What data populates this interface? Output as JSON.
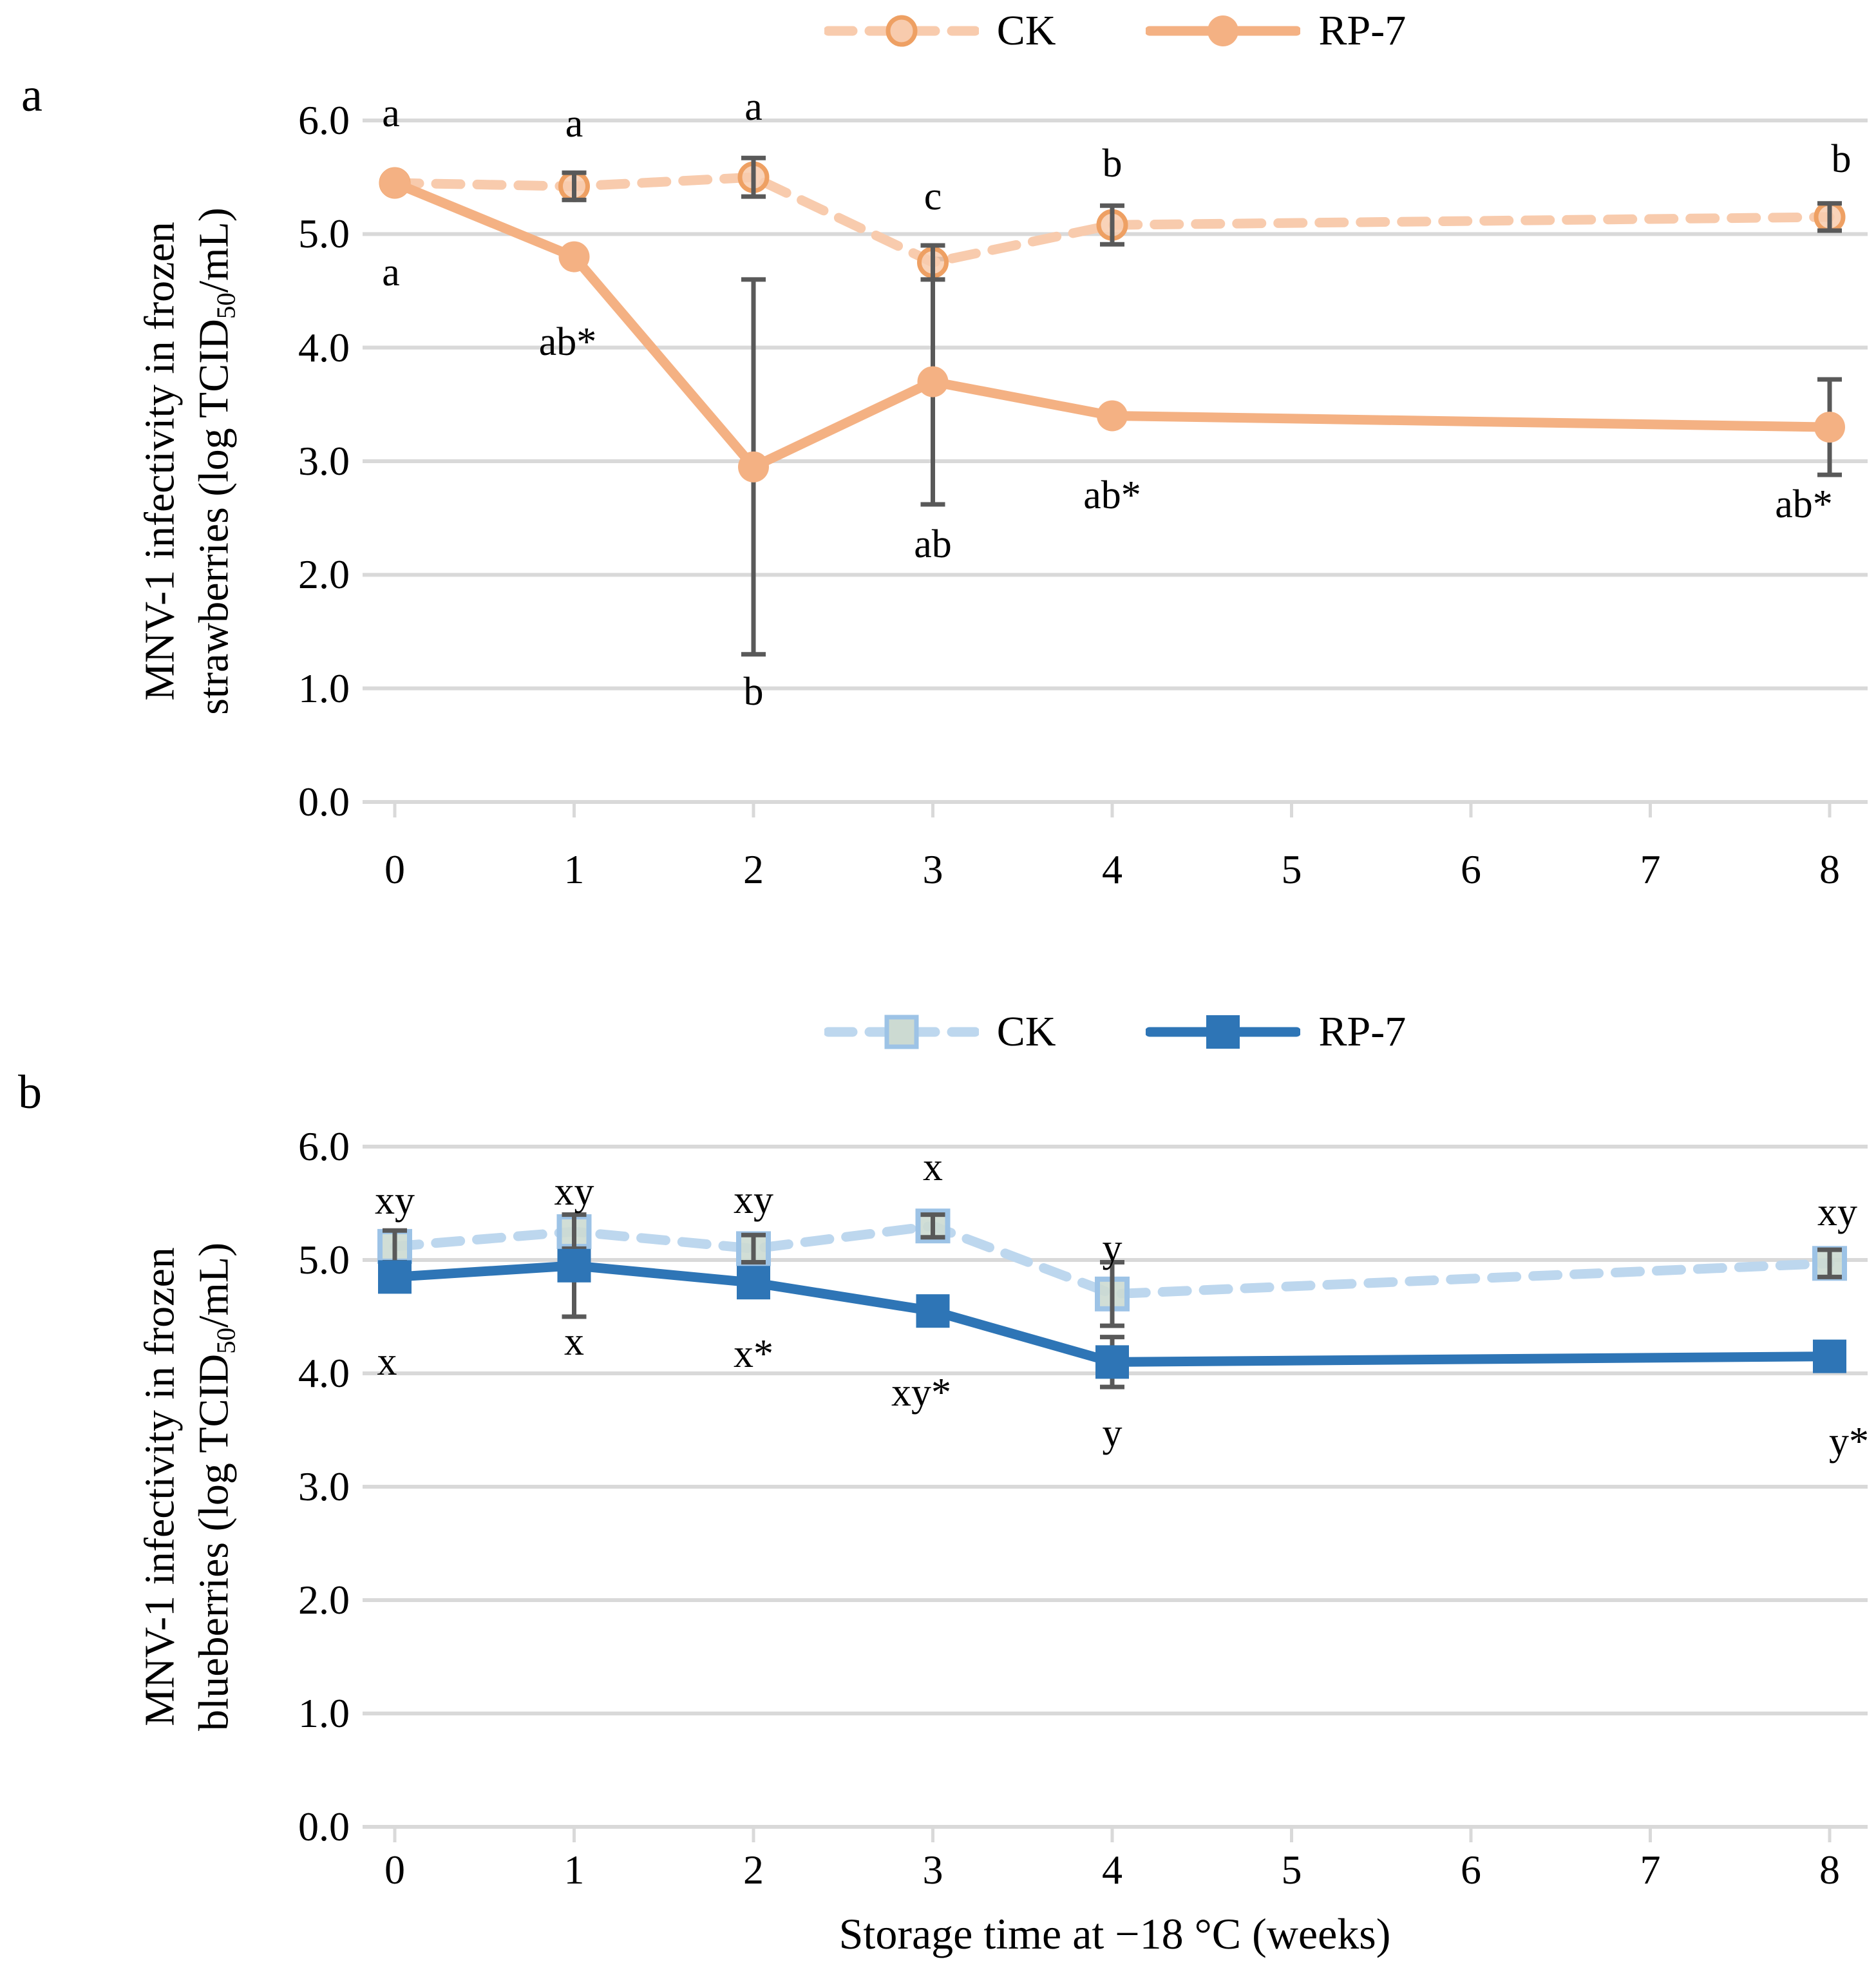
{
  "figure": {
    "panel_a_letter": "a",
    "panel_b_letter": "b",
    "colors": {
      "grid": "#d9d9d9",
      "error_bar": "#595959",
      "text": "#000000",
      "orange_ck_line": "#f8cbad",
      "orange_ck_ring": "#eea063",
      "orange_rp": "#f4b183",
      "blue_ck_line": "#bdd7ee",
      "blue_ck_ring": "#9dc3e6",
      "blue_ck_fill": "#ccdad2",
      "blue_rp": "#2e75b6"
    }
  },
  "chart_data": [
    {
      "type": "line",
      "panel": "a",
      "x": [
        0,
        1,
        2,
        3,
        4,
        8
      ],
      "x_ticks": [
        "0",
        "1",
        "2",
        "3",
        "4",
        "5",
        "6",
        "7",
        "8"
      ],
      "y_ticks": [
        "6.0",
        "5.0",
        "4.0",
        "3.0",
        "2.0",
        "1.0",
        "0.0"
      ],
      "xlim": [
        0,
        8
      ],
      "ylim": [
        0,
        6
      ],
      "grid": true,
      "legend_position": "top",
      "ylabel_parts": {
        "line1": "MNV-1 infectivity in frozen",
        "line2_pre": "strawberries (log TCID",
        "line2_sub": "50",
        "line2_post": "/mL)"
      },
      "series": [
        {
          "name": "CK",
          "line_style": "dashed",
          "marker": "circle",
          "line_color": "#f8cbad",
          "marker_fill": "#f8cbad",
          "marker_border": "#eea063",
          "values": [
            5.45,
            5.42,
            5.5,
            4.75,
            5.08,
            5.15
          ],
          "errors": [
            0,
            0.12,
            0.17,
            0.15,
            0.17,
            0.12
          ],
          "point_labels": [
            {
              "text": "a",
              "week": 0,
              "y": 6.06,
              "dx": -6
            },
            {
              "text": "a",
              "week": 1,
              "y": 5.97,
              "dx": 0
            },
            {
              "text": "a",
              "week": 2,
              "y": 6.12,
              "dx": 0
            },
            {
              "text": "c",
              "week": 3,
              "y": 5.33,
              "dx": 0
            },
            {
              "text": "b",
              "week": 4,
              "y": 5.62,
              "dx": 0
            },
            {
              "text": "b",
              "week": 8,
              "y": 5.66,
              "dx": 18
            }
          ]
        },
        {
          "name": "RP-7",
          "line_style": "solid",
          "marker": "circle",
          "line_color": "#f4b183",
          "marker_fill": "#f4b183",
          "marker_border": "#f4b183",
          "values": [
            5.45,
            4.8,
            2.95,
            3.7,
            3.4,
            3.3
          ],
          "errors": [
            0,
            0,
            1.65,
            1.08,
            0,
            0.42
          ],
          "point_labels": [
            {
              "text": "a",
              "week": 0,
              "y": 4.66,
              "dx": -6
            },
            {
              "text": "ab*",
              "week": 1,
              "y": 4.05,
              "dx": -10
            },
            {
              "text": "b",
              "week": 2,
              "y": 0.97,
              "dx": 0
            },
            {
              "text": "ab",
              "week": 3,
              "y": 2.27,
              "dx": 0
            },
            {
              "text": "ab*",
              "week": 4,
              "y": 2.7,
              "dx": 0
            },
            {
              "text": "ab*",
              "week": 8,
              "y": 2.62,
              "dx": -40
            }
          ]
        }
      ]
    },
    {
      "type": "line",
      "panel": "b",
      "x": [
        0,
        1,
        2,
        3,
        4,
        8
      ],
      "x_ticks": [
        "0",
        "1",
        "2",
        "3",
        "4",
        "5",
        "6",
        "7",
        "8"
      ],
      "y_ticks": [
        "6.0",
        "5.0",
        "4.0",
        "3.0",
        "2.0",
        "1.0",
        "0.0"
      ],
      "xlim": [
        0,
        8
      ],
      "ylim": [
        0,
        6
      ],
      "grid": true,
      "legend_position": "top",
      "xlabel": "Storage time at −18 °C (weeks)",
      "ylabel_parts": {
        "line1": "MNV-1 infectivity in frozen",
        "line2_pre": "blueberries (log TCID",
        "line2_sub": "50",
        "line2_post": "/mL)"
      },
      "series": [
        {
          "name": "CK",
          "line_style": "dashed",
          "marker": "square",
          "line_color": "#bdd7ee",
          "marker_fill": "#ccdad2",
          "marker_border": "#9dc3e6",
          "values": [
            5.12,
            5.25,
            5.1,
            5.3,
            4.7,
            4.97
          ],
          "errors": [
            0.14,
            0.15,
            0.12,
            0.1,
            0.28,
            0.12
          ],
          "point_labels": [
            {
              "text": "xy",
              "week": 0,
              "y": 5.52,
              "dx": 0
            },
            {
              "text": "xy",
              "week": 1,
              "y": 5.6,
              "dx": 0
            },
            {
              "text": "xy",
              "week": 2,
              "y": 5.53,
              "dx": 0
            },
            {
              "text": "x",
              "week": 3,
              "y": 5.82,
              "dx": 0
            },
            {
              "text": "y",
              "week": 4,
              "y": 5.1,
              "dx": 0
            },
            {
              "text": "xy",
              "week": 8,
              "y": 5.42,
              "dx": 12
            }
          ]
        },
        {
          "name": "RP-7",
          "line_style": "solid",
          "marker": "square",
          "line_color": "#2e75b6",
          "marker_fill": "#2e75b6",
          "marker_border": "#2e75b6",
          "values": [
            4.85,
            4.95,
            4.8,
            4.55,
            4.1,
            4.15
          ],
          "errors": [
            0,
            0.45,
            0,
            0.12,
            0.22,
            0
          ],
          "point_labels": [
            {
              "text": "x",
              "week": 0,
              "y": 4.1,
              "dx": -12
            },
            {
              "text": "x",
              "week": 1,
              "y": 4.28,
              "dx": 0
            },
            {
              "text": "x*",
              "week": 2,
              "y": 4.17,
              "dx": 0
            },
            {
              "text": "xy*",
              "week": 3,
              "y": 3.83,
              "dx": -18
            },
            {
              "text": "y",
              "week": 4,
              "y": 3.47,
              "dx": 0
            },
            {
              "text": "y*",
              "week": 8,
              "y": 3.4,
              "dx": 30
            }
          ]
        }
      ]
    }
  ]
}
